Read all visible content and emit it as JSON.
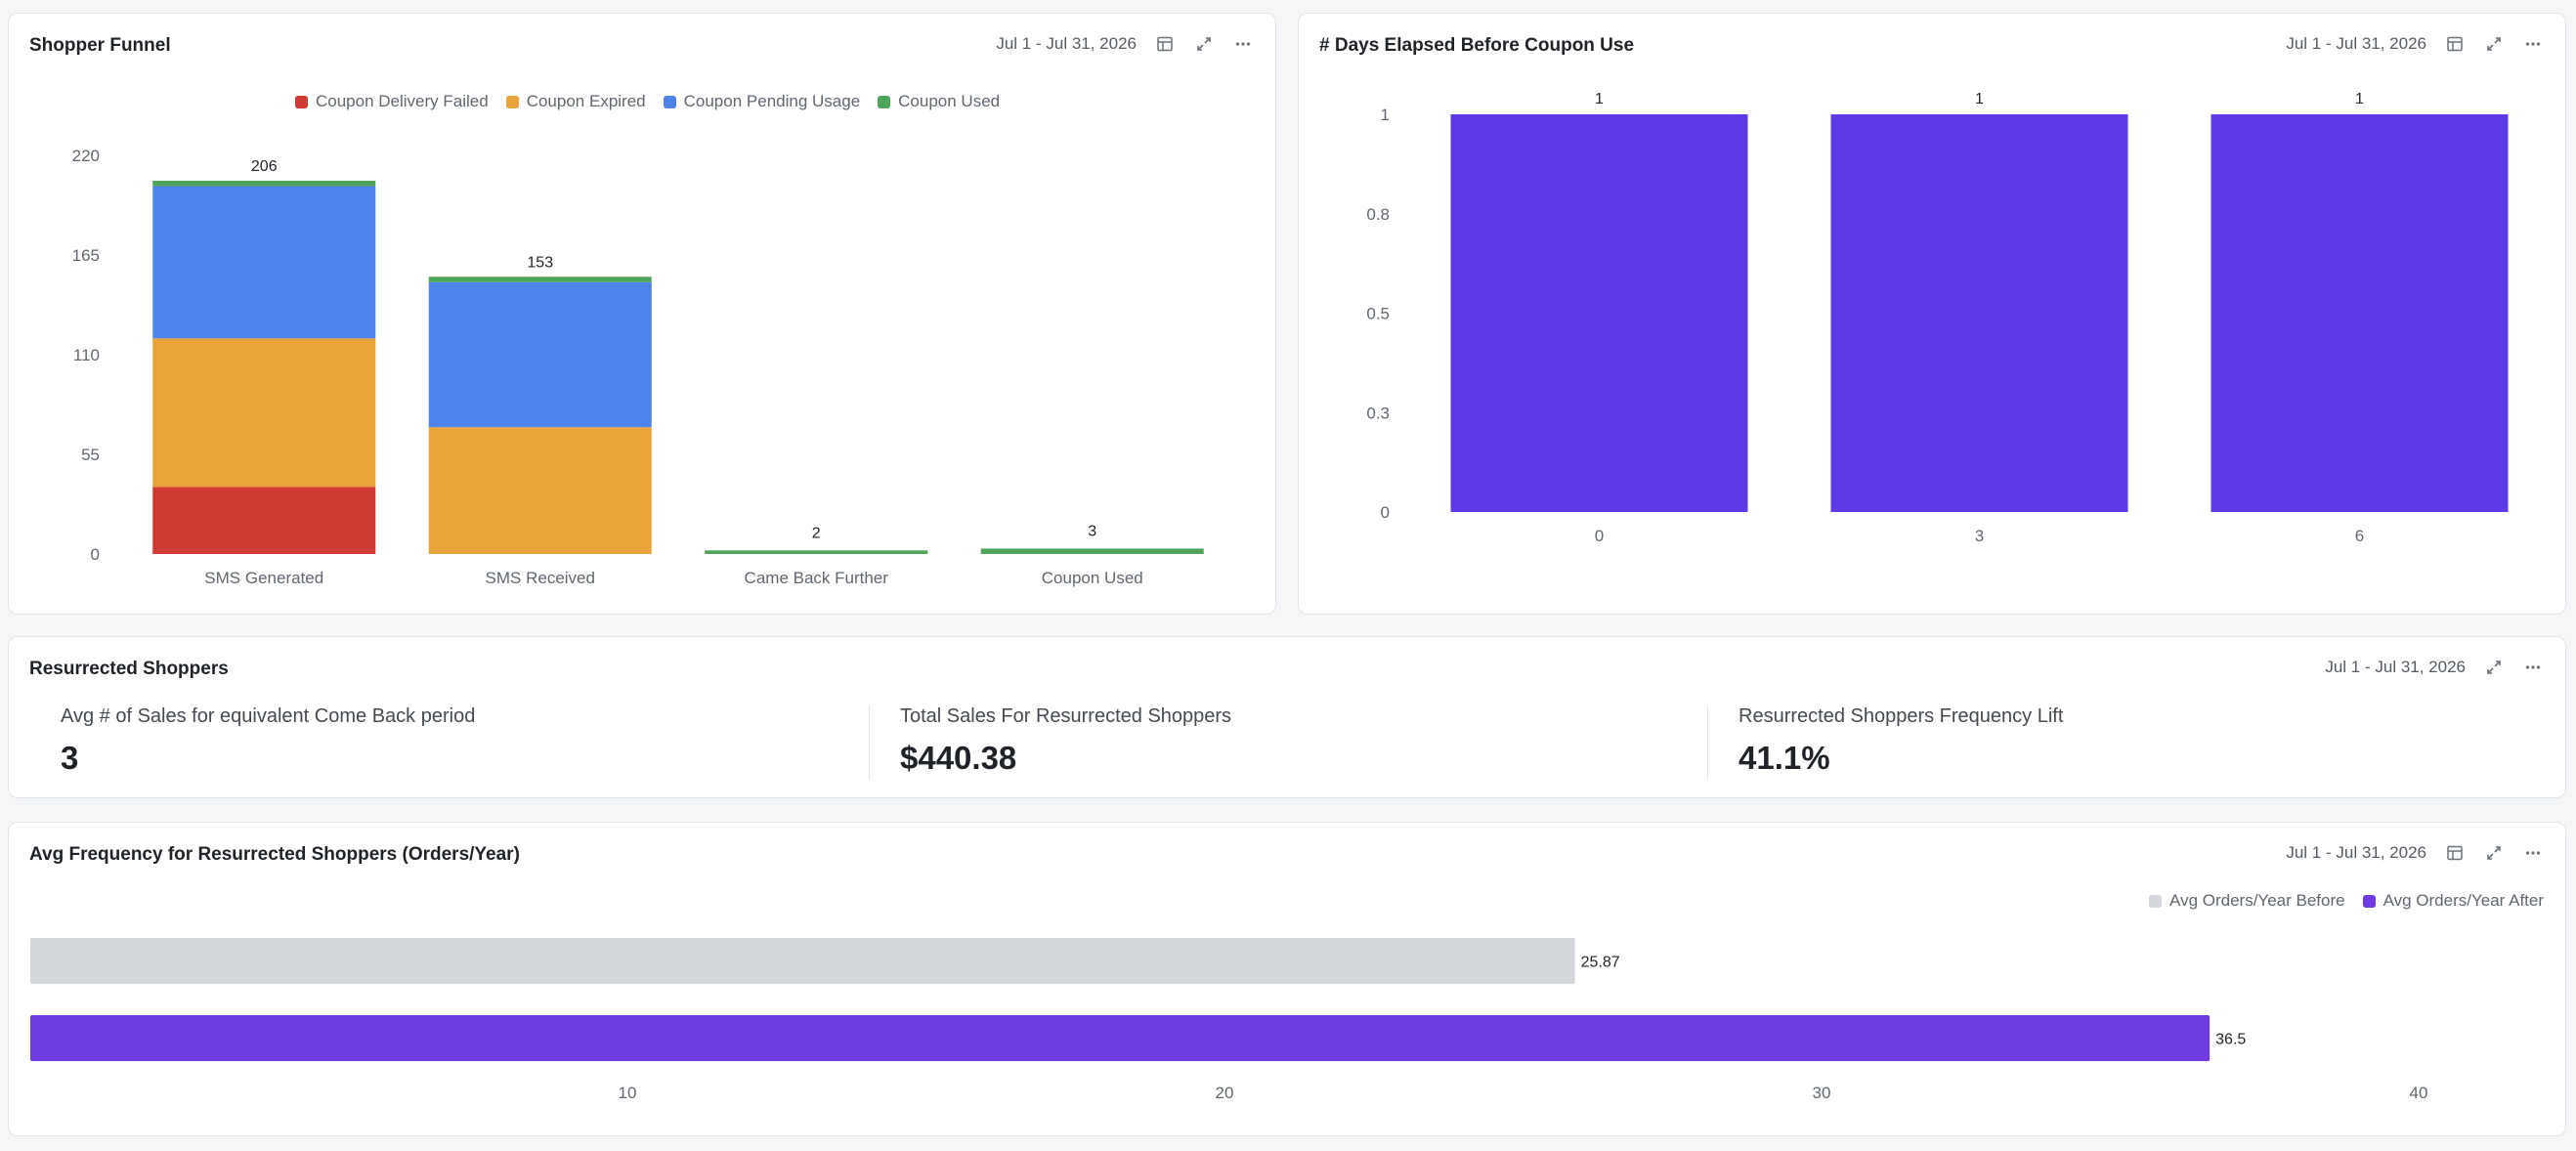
{
  "cards": {
    "funnel": {
      "title": "Shopper Funnel",
      "date_range": "Jul 1 - Jul 31, 2026"
    },
    "days": {
      "title": "# Days Elapsed Before Coupon Use",
      "date_range": "Jul 1 - Jul 31, 2026"
    },
    "resurrected": {
      "title": "Resurrected Shoppers",
      "date_range": "Jul 1 - Jul 31, 2026"
    },
    "frequency": {
      "title": "Avg Frequency for Resurrected Shoppers (Orders/Year)",
      "date_range": "Jul 1 - Jul 31, 2026"
    }
  },
  "icons": {
    "table": "table-icon",
    "expand": "expand-icon",
    "more": "more-icon"
  },
  "colors": {
    "delivery_failed": "#cf3b33",
    "expired": "#e8a33a",
    "pending": "#4d84ea",
    "used": "#4fa65a",
    "days_bar": "#5e3ae6",
    "freq_before": "#d3d6da",
    "freq_after": "#6e3ae2"
  },
  "kpis": [
    {
      "label": "Avg # of Sales for equivalent Come Back period",
      "value": "3"
    },
    {
      "label": "Total Sales For Resurrected Shoppers",
      "value": "$440.38"
    },
    {
      "label": "Resurrected Shoppers Frequency Lift",
      "value": "41.1%"
    }
  ],
  "chart_data": [
    {
      "type": "bar",
      "stacked": true,
      "categories": [
        "SMS Generated",
        "SMS Received",
        "Came Back Further",
        "Coupon Used"
      ],
      "series": [
        {
          "name": "Coupon Delivery Failed",
          "values": [
            37,
            0,
            0,
            0
          ]
        },
        {
          "name": "Coupon Expired",
          "values": [
            82,
            70,
            0,
            0
          ]
        },
        {
          "name": "Coupon Pending Usage",
          "values": [
            84,
            80,
            0,
            0
          ]
        },
        {
          "name": "Coupon Used",
          "values": [
            3,
            3,
            2,
            3
          ]
        }
      ],
      "totals": [
        206,
        153,
        2,
        3
      ],
      "yticks": [
        0,
        55,
        110,
        165,
        220
      ],
      "ylim": [
        0,
        220
      ],
      "legend": "top-center"
    },
    {
      "type": "bar",
      "categories": [
        "0",
        "3",
        "6"
      ],
      "values": [
        1,
        1,
        1
      ],
      "yticks": [
        "0",
        "0.3",
        "0.5",
        "0.8",
        "1"
      ],
      "ylim": [
        0,
        1
      ]
    },
    {
      "type": "bar",
      "orientation": "horizontal",
      "series": [
        {
          "name": "Avg Orders/Year Before",
          "values": [
            25.87
          ]
        },
        {
          "name": "Avg Orders/Year After",
          "values": [
            36.5
          ]
        }
      ],
      "xticks": [
        10,
        20,
        30,
        40
      ],
      "xlim": [
        0,
        40
      ],
      "legend": "top-right"
    }
  ]
}
